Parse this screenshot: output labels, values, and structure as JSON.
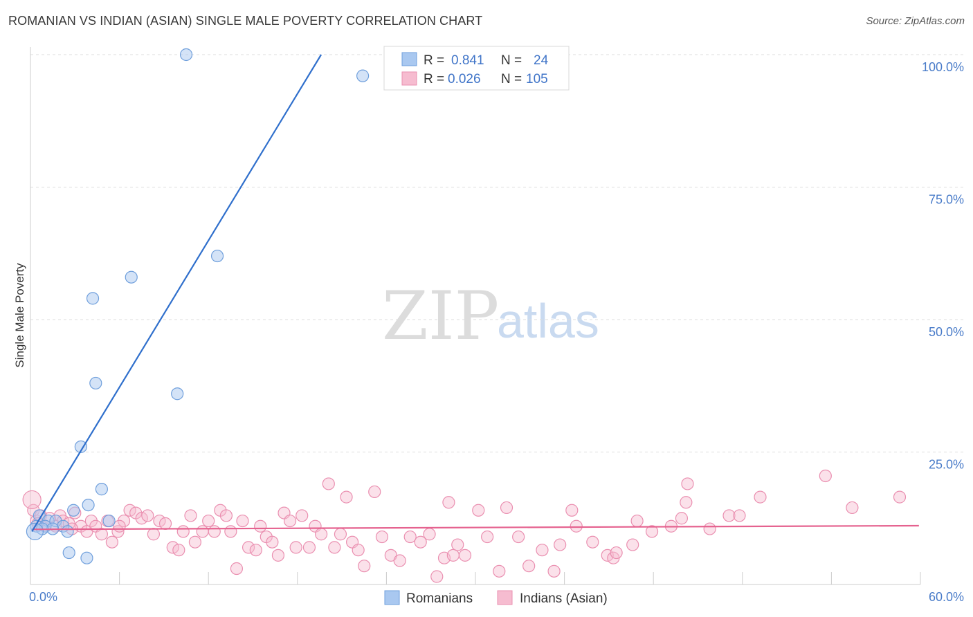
{
  "header": {
    "title": "ROMANIAN VS INDIAN (ASIAN) SINGLE MALE POVERTY CORRELATION CHART",
    "source": "Source: ZipAtlas.com"
  },
  "watermark": {
    "zip": "ZIP",
    "atlas": "atlas"
  },
  "legend": {
    "romanians": {
      "r_label": "R =",
      "r_value": "0.841",
      "n_label": "N =",
      "n_value": "24"
    },
    "indians": {
      "r_label": "R =",
      "r_value": "0.026",
      "n_label": "N =",
      "n_value": "105"
    }
  },
  "colors": {
    "blue_fill": "#a9c8f0",
    "blue_stroke": "#6f9fdc",
    "blue_line": "#2f6fcc",
    "pink_fill": "#f6bcd0",
    "pink_stroke": "#ea8fb0",
    "pink_line": "#e5628f",
    "axis_text": "#4a7cc9"
  },
  "chart_data": {
    "type": "scatter",
    "title": "ROMANIAN VS INDIAN (ASIAN) SINGLE MALE POVERTY CORRELATION CHART",
    "xlabel": "",
    "ylabel": "Single Male Poverty",
    "xlim": [
      0,
      60
    ],
    "ylim": [
      0,
      100
    ],
    "x_tick_labels": [
      "0.0%",
      "60.0%"
    ],
    "y_ticks": [
      25,
      50,
      75,
      100
    ],
    "y_tick_labels": [
      "25.0%",
      "50.0%",
      "75.0%",
      "100.0%"
    ],
    "grid": true,
    "legend_position": "bottom-center",
    "series": [
      {
        "name": "Romanians",
        "color": "#a9c8f0",
        "r": 0.841,
        "n": 24,
        "trend": {
          "x": [
            0.1,
            19.6
          ],
          "y": [
            10.0,
            100.0
          ]
        },
        "points": [
          [
            10.5,
            100.0
          ],
          [
            22.4,
            96.0
          ],
          [
            12.6,
            62.0
          ],
          [
            6.8,
            58.0
          ],
          [
            4.2,
            54.0
          ],
          [
            4.4,
            38.0
          ],
          [
            9.9,
            36.0
          ],
          [
            3.4,
            26.0
          ],
          [
            4.8,
            18.0
          ],
          [
            3.9,
            15.0
          ],
          [
            2.9,
            14.0
          ],
          [
            5.3,
            12.0
          ],
          [
            0.6,
            13.0
          ],
          [
            1.2,
            12.0
          ],
          [
            1.7,
            12.0
          ],
          [
            2.2,
            11.0
          ],
          [
            1.0,
            11.0
          ],
          [
            0.4,
            11.0
          ],
          [
            2.5,
            10.0
          ],
          [
            1.5,
            10.5
          ],
          [
            0.8,
            10.5
          ],
          [
            0.3,
            10.0
          ],
          [
            2.6,
            6.0
          ],
          [
            3.8,
            5.0
          ]
        ]
      },
      {
        "name": "Indians (Asian)",
        "color": "#f6bcd0",
        "r": 0.026,
        "n": 105,
        "trend": {
          "x": [
            0.1,
            59.9
          ],
          "y": [
            10.4,
            11.1
          ]
        },
        "points": [
          [
            0.2,
            14.0
          ],
          [
            0.4,
            12.0
          ],
          [
            0.7,
            13.0
          ],
          [
            1.0,
            11.0
          ],
          [
            1.3,
            12.5
          ],
          [
            1.7,
            11.0
          ],
          [
            2.0,
            13.0
          ],
          [
            2.2,
            12.0
          ],
          [
            2.6,
            11.5
          ],
          [
            3.0,
            13.5
          ],
          [
            3.4,
            11.0
          ],
          [
            3.8,
            10.0
          ],
          [
            4.1,
            12.0
          ],
          [
            4.4,
            11.0
          ],
          [
            4.8,
            9.5
          ],
          [
            5.2,
            12.0
          ],
          [
            5.5,
            8.0
          ],
          [
            5.9,
            10.0
          ],
          [
            6.3,
            12.0
          ],
          [
            6.7,
            14.0
          ],
          [
            7.1,
            13.5
          ],
          [
            7.5,
            12.5
          ],
          [
            7.9,
            13.0
          ],
          [
            8.3,
            9.5
          ],
          [
            8.7,
            12.0
          ],
          [
            9.1,
            11.5
          ],
          [
            9.6,
            7.0
          ],
          [
            10.0,
            6.5
          ],
          [
            10.3,
            10.0
          ],
          [
            10.8,
            13.0
          ],
          [
            11.1,
            8.0
          ],
          [
            11.6,
            10.0
          ],
          [
            12.0,
            12.0
          ],
          [
            12.4,
            10.0
          ],
          [
            12.8,
            14.0
          ],
          [
            13.2,
            13.0
          ],
          [
            13.5,
            10.0
          ],
          [
            13.9,
            3.0
          ],
          [
            14.3,
            12.0
          ],
          [
            14.7,
            7.0
          ],
          [
            15.2,
            6.5
          ],
          [
            15.5,
            11.0
          ],
          [
            15.9,
            9.0
          ],
          [
            16.3,
            8.0
          ],
          [
            16.7,
            5.5
          ],
          [
            17.1,
            13.5
          ],
          [
            17.5,
            12.0
          ],
          [
            17.9,
            7.0
          ],
          [
            18.3,
            13.0
          ],
          [
            18.8,
            7.0
          ],
          [
            19.2,
            11.0
          ],
          [
            19.6,
            9.5
          ],
          [
            20.1,
            19.0
          ],
          [
            20.5,
            7.0
          ],
          [
            20.9,
            9.5
          ],
          [
            21.3,
            16.5
          ],
          [
            21.7,
            8.0
          ],
          [
            22.1,
            6.5
          ],
          [
            22.5,
            3.5
          ],
          [
            23.2,
            17.5
          ],
          [
            23.7,
            9.0
          ],
          [
            24.3,
            5.5
          ],
          [
            24.9,
            4.5
          ],
          [
            25.6,
            9.0
          ],
          [
            26.3,
            8.0
          ],
          [
            26.9,
            9.5
          ],
          [
            27.4,
            1.5
          ],
          [
            27.9,
            5.0
          ],
          [
            28.2,
            15.5
          ],
          [
            28.5,
            5.5
          ],
          [
            28.8,
            7.5
          ],
          [
            29.3,
            5.5
          ],
          [
            30.2,
            14.0
          ],
          [
            30.8,
            9.0
          ],
          [
            31.6,
            2.5
          ],
          [
            32.1,
            14.5
          ],
          [
            32.9,
            9.0
          ],
          [
            33.6,
            3.5
          ],
          [
            34.5,
            6.5
          ],
          [
            35.3,
            2.5
          ],
          [
            35.7,
            7.5
          ],
          [
            36.5,
            14.0
          ],
          [
            36.8,
            11.0
          ],
          [
            37.9,
            8.0
          ],
          [
            38.9,
            5.5
          ],
          [
            39.3,
            5.0
          ],
          [
            39.5,
            6.0
          ],
          [
            40.6,
            7.5
          ],
          [
            40.9,
            12.0
          ],
          [
            41.9,
            10.0
          ],
          [
            43.2,
            11.0
          ],
          [
            43.9,
            12.5
          ],
          [
            44.2,
            15.5
          ],
          [
            44.3,
            19.0
          ],
          [
            45.8,
            10.5
          ],
          [
            47.1,
            13.0
          ],
          [
            47.8,
            13.0
          ],
          [
            49.2,
            16.5
          ],
          [
            53.6,
            20.5
          ],
          [
            55.4,
            14.5
          ],
          [
            58.6,
            16.5
          ],
          [
            0.1,
            16.0
          ],
          [
            0.5,
            11.5
          ],
          [
            2.8,
            10.5
          ],
          [
            6.0,
            11.0
          ]
        ]
      }
    ]
  },
  "bottom_legend": {
    "romanians_label": "Romanians",
    "indians_label": "Indians (Asian)"
  }
}
